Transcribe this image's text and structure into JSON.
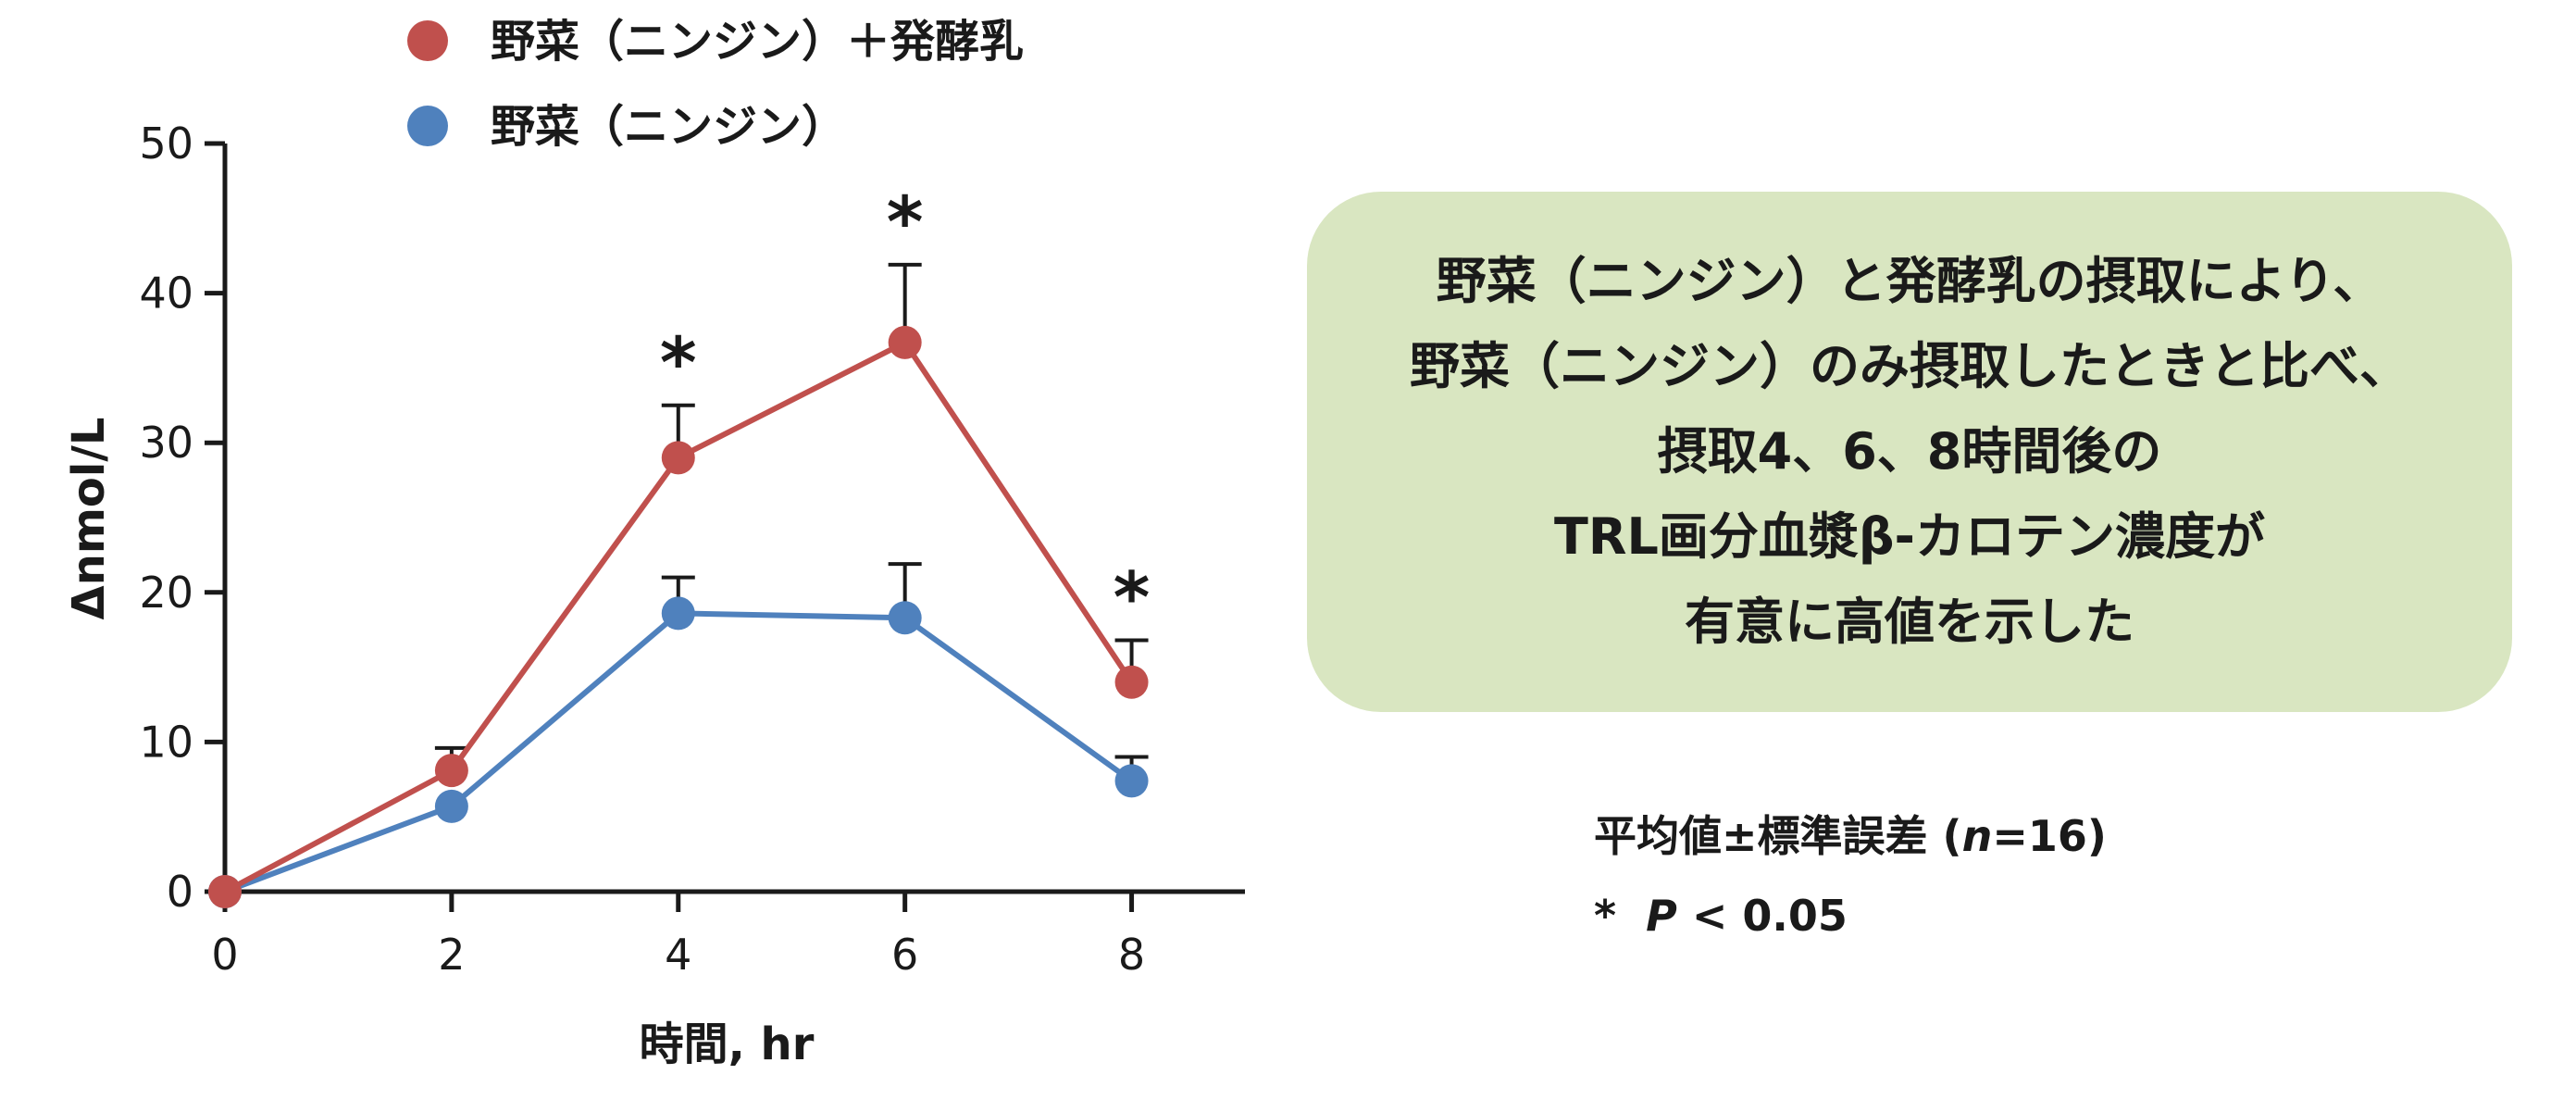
{
  "chart_data": {
    "type": "line",
    "title": "",
    "xlabel": "時間, hr",
    "ylabel": "Δnmol/L",
    "x": [
      0,
      2,
      4,
      6,
      8
    ],
    "xticks": [
      "0",
      "2",
      "4",
      "6",
      "8"
    ],
    "yticks": [
      "0",
      "10",
      "20",
      "30",
      "40",
      "50"
    ],
    "xlim": [
      0,
      9
    ],
    "ylim": [
      0,
      50
    ],
    "grid": false,
    "legend_position": "top",
    "series": [
      {
        "name": "野菜（ニンジン）＋発酵乳",
        "color": "#c0504d",
        "values": [
          0,
          8.1,
          29.0,
          36.7,
          14.0
        ],
        "error_upper": [
          0,
          1.5,
          3.5,
          5.2,
          2.8
        ]
      },
      {
        "name": "野菜（ニンジン）",
        "color": "#4f81bd",
        "values": [
          0,
          5.7,
          18.6,
          18.3,
          7.4
        ],
        "error_upper": [
          0,
          0,
          2.4,
          3.6,
          1.6
        ]
      }
    ],
    "significance_x": [
      4,
      6,
      8
    ],
    "significance_mark": "*"
  },
  "callout": {
    "lines": [
      "野菜（ニンジン）と発酵乳の摂取により、",
      "野菜（ニンジン）のみ摂取したときと比べ、",
      "摂取4、6、8時間後の",
      "TRL画分血漿β-カロテン濃度が",
      "有意に高値を示した"
    ]
  },
  "notes": {
    "stat_prefix": "平均値±標準誤差 (",
    "stat_n": "n",
    "stat_suffix": "=16)",
    "p_star": "*",
    "p_symbol": "P",
    "p_value": " < 0.05"
  }
}
